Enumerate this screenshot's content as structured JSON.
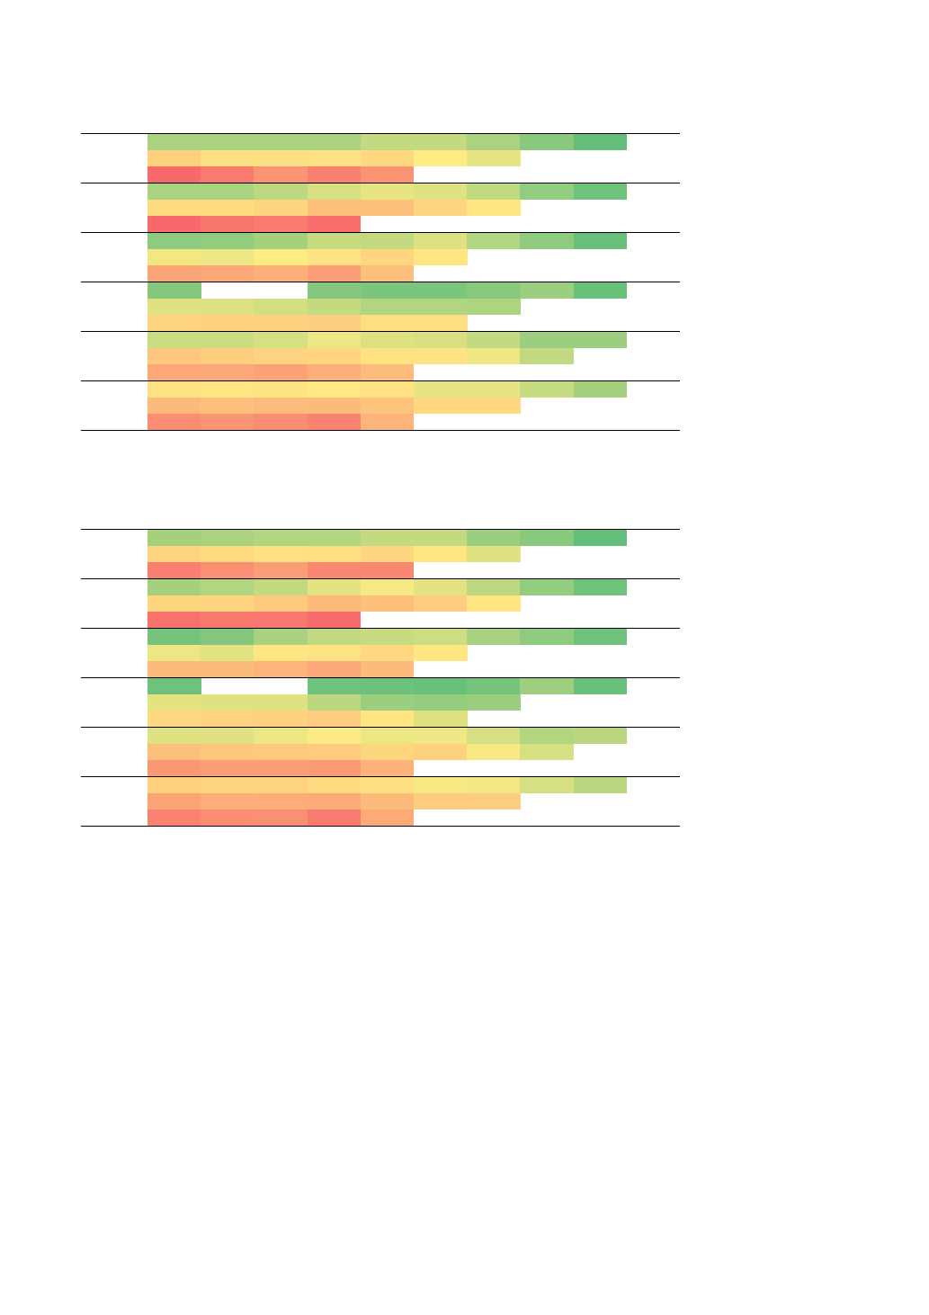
{
  "chart_data": [
    {
      "type": "heatmap",
      "palette": {
        "low": "#f8696b",
        "mid": "#ffeb84",
        "high": "#63be7b"
      },
      "groups": [
        {
          "rows": [
            [
              0.77,
              0.77,
              0.77,
              0.77,
              0.69,
              0.69,
              0.77,
              0.88,
              1.0
            ],
            [
              0.4,
              0.45,
              0.45,
              0.46,
              0.43,
              0.5,
              0.58,
              null,
              null
            ],
            [
              0.0,
              0.07,
              0.17,
              0.09,
              0.16,
              null,
              null,
              null,
              null
            ]
          ]
        },
        {
          "rows": [
            [
              0.77,
              0.77,
              0.71,
              0.63,
              0.58,
              0.6,
              0.7,
              0.85,
              0.96
            ],
            [
              0.44,
              0.44,
              0.42,
              0.33,
              0.34,
              0.41,
              0.48,
              null,
              null
            ],
            [
              0.0,
              0.05,
              0.07,
              0.02,
              null,
              null,
              null,
              null,
              null
            ]
          ]
        },
        {
          "rows": [
            [
              0.86,
              0.85,
              0.79,
              0.68,
              0.69,
              0.61,
              0.75,
              0.86,
              0.98
            ],
            [
              0.54,
              0.56,
              0.5,
              0.47,
              0.42,
              0.48,
              null,
              null,
              null
            ],
            [
              0.23,
              0.24,
              0.27,
              0.21,
              0.33,
              null,
              null,
              null,
              null
            ]
          ]
        },
        {
          "rows": [
            [
              0.89,
              null,
              null,
              0.89,
              0.92,
              0.92,
              0.88,
              0.82,
              0.98
            ],
            [
              0.6,
              0.61,
              0.64,
              0.69,
              0.75,
              0.75,
              0.76,
              null,
              null
            ],
            [
              0.41,
              0.4,
              0.4,
              0.39,
              0.45,
              0.45,
              null,
              null,
              null
            ]
          ]
        },
        {
          "rows": [
            [
              0.67,
              0.67,
              0.63,
              0.56,
              0.61,
              0.62,
              0.69,
              0.82,
              0.82
            ],
            [
              0.36,
              0.39,
              0.41,
              0.42,
              0.47,
              0.47,
              0.55,
              0.7,
              null
            ],
            [
              0.24,
              0.24,
              0.22,
              0.27,
              0.32,
              null,
              null,
              null,
              null
            ]
          ]
        },
        {
          "rows": [
            [
              0.46,
              0.48,
              0.47,
              0.49,
              0.47,
              0.58,
              0.58,
              0.68,
              0.79
            ],
            [
              0.31,
              0.34,
              0.32,
              0.31,
              0.35,
              0.43,
              0.43,
              null,
              null
            ],
            [
              0.14,
              0.17,
              0.14,
              0.1,
              0.29,
              null,
              null,
              null,
              null
            ]
          ]
        }
      ]
    },
    {
      "type": "heatmap",
      "palette": {
        "low": "#f8696b",
        "mid": "#ffeb84",
        "high": "#63be7b"
      },
      "groups": [
        {
          "rows": [
            [
              0.79,
              0.77,
              0.74,
              0.74,
              0.69,
              0.69,
              0.82,
              0.88,
              1.0
            ],
            [
              0.41,
              0.44,
              0.46,
              0.45,
              0.42,
              0.48,
              0.6,
              null,
              null
            ],
            [
              0.09,
              0.15,
              0.2,
              0.12,
              0.12,
              null,
              null,
              null,
              null
            ]
          ]
        },
        {
          "rows": [
            [
              0.79,
              0.75,
              0.69,
              0.59,
              0.53,
              0.59,
              0.71,
              0.85,
              0.96
            ],
            [
              0.42,
              0.42,
              0.37,
              0.31,
              0.34,
              0.39,
              0.48,
              null,
              null
            ],
            [
              0.04,
              0.06,
              0.06,
              0.01,
              null,
              null,
              null,
              null,
              null
            ]
          ]
        },
        {
          "rows": [
            [
              0.94,
              0.9,
              0.78,
              0.7,
              0.68,
              0.66,
              0.78,
              0.86,
              0.96
            ],
            [
              0.56,
              0.59,
              0.48,
              0.47,
              0.43,
              0.48,
              null,
              null,
              null
            ],
            [
              0.31,
              0.31,
              0.29,
              0.24,
              0.31,
              null,
              null,
              null,
              null
            ]
          ]
        },
        {
          "rows": [
            [
              0.96,
              null,
              null,
              0.96,
              0.97,
              0.98,
              0.94,
              0.81,
              0.98
            ],
            [
              0.59,
              0.6,
              0.6,
              0.72,
              0.82,
              0.84,
              0.82,
              null,
              null
            ],
            [
              0.43,
              0.41,
              0.4,
              0.38,
              0.48,
              0.6,
              null,
              null,
              null
            ]
          ]
        },
        {
          "rows": [
            [
              0.6,
              0.6,
              0.56,
              0.51,
              0.56,
              0.55,
              0.63,
              0.74,
              0.72
            ],
            [
              0.33,
              0.36,
              0.37,
              0.38,
              0.42,
              0.4,
              0.52,
              0.63,
              null
            ],
            [
              0.18,
              0.2,
              0.2,
              0.19,
              0.28,
              null,
              null,
              null,
              null
            ]
          ]
        },
        {
          "rows": [
            [
              0.4,
              0.42,
              0.41,
              0.44,
              0.45,
              0.53,
              0.54,
              0.63,
              0.72
            ],
            [
              0.23,
              0.26,
              0.26,
              0.25,
              0.31,
              0.38,
              0.39,
              null,
              null
            ],
            [
              0.1,
              0.14,
              0.15,
              0.07,
              0.25,
              null,
              null,
              null,
              null
            ]
          ]
        }
      ]
    }
  ]
}
